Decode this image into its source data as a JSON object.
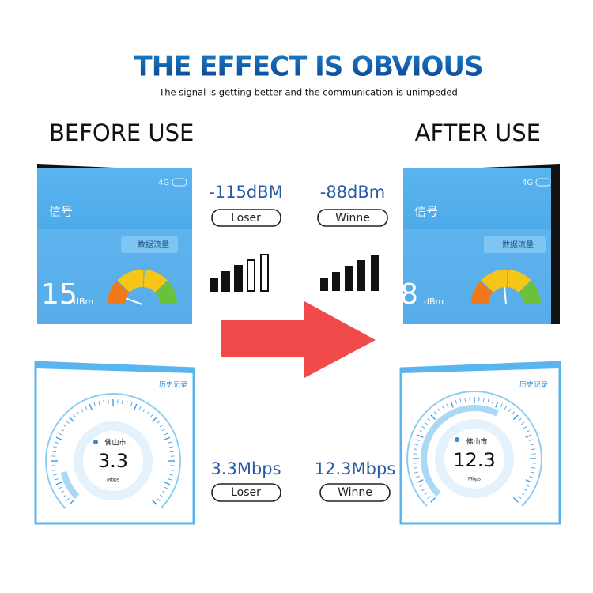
{
  "header": {
    "title": "THE EFFECT IS OBVIOUS",
    "subtitle": "The signal is getting better and the communication is unimpeded"
  },
  "before": {
    "heading": "BEFORE USE",
    "signal_panel": {
      "status": "4G",
      "label": "信号",
      "button": "数据流量",
      "reading": "15",
      "unit": "dBm"
    },
    "signal_value": "-115dBM",
    "signal_badge": "Loser",
    "speed_panel": {
      "history": "历史记录",
      "city": "佛山市",
      "speed": "3.3",
      "unit": "Mbps"
    },
    "speed_value": "3.3Mbps",
    "speed_badge": "Loser"
  },
  "after": {
    "heading": "AFTER USE",
    "signal_panel": {
      "status": "4G",
      "label": "信号",
      "button": "数据流量",
      "reading": "8",
      "unit": "dBm"
    },
    "signal_value": "-88dBm",
    "signal_badge": "Winne",
    "speed_panel": {
      "history": "历史记录",
      "city": "佛山市",
      "speed": "12.3",
      "unit": "Mbps"
    },
    "speed_value": "12.3Mbps",
    "speed_badge": "Winne"
  }
}
